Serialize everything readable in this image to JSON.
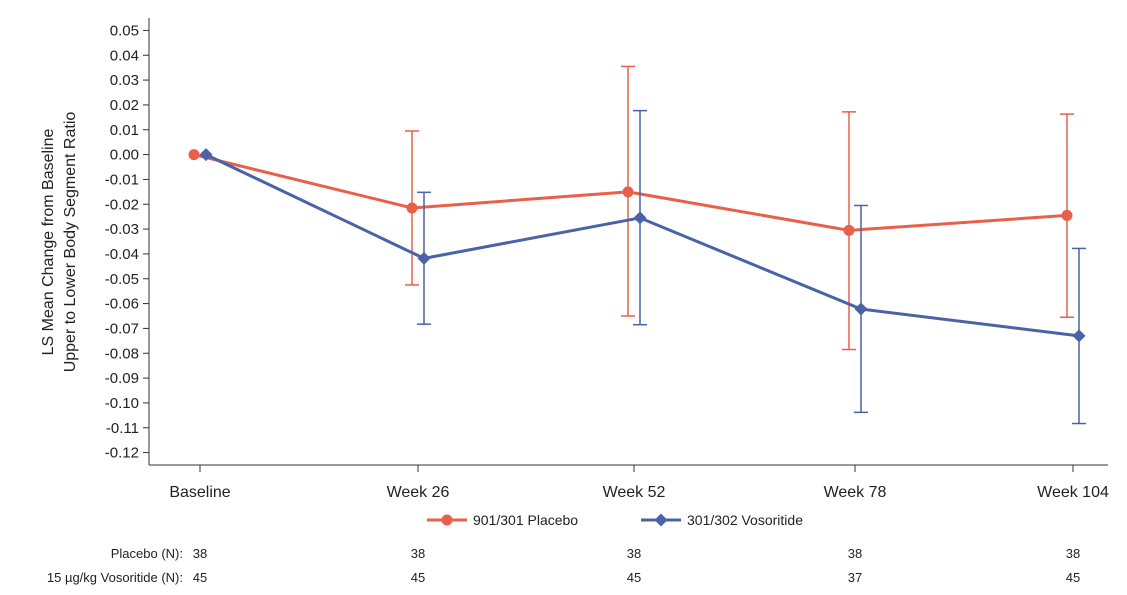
{
  "chart_data": {
    "type": "line",
    "categories": [
      "Baseline",
      "Week 26",
      "Week 52",
      "Week 78",
      "Week 104"
    ],
    "ylabel_lines": [
      "LS Mean Change from Baseline",
      "Upper to Lower Body Segment Ratio"
    ],
    "ylim": [
      -0.125,
      0.055
    ],
    "yticks": [
      "0.05",
      "0.04",
      "0.03",
      "0.02",
      "0.01",
      "0.00",
      "-0.01",
      "-0.02",
      "-0.03",
      "-0.04",
      "-0.05",
      "-0.06",
      "-0.07",
      "-0.08",
      "-0.09",
      "-0.10",
      "-0.11",
      "-0.12"
    ],
    "ytick_values": [
      0.05,
      0.04,
      0.03,
      0.02,
      0.01,
      0.0,
      -0.01,
      -0.02,
      -0.03,
      -0.04,
      -0.05,
      -0.06,
      -0.07,
      -0.08,
      -0.09,
      -0.1,
      -0.11,
      -0.12
    ],
    "series": [
      {
        "name": "901/301 Placebo",
        "color": "#e8604a",
        "marker": "circle",
        "values": [
          0.0,
          -0.0215,
          -0.015,
          -0.0305,
          -0.0245
        ],
        "ci_low": [
          null,
          -0.0525,
          -0.065,
          -0.0785,
          -0.0655
        ],
        "ci_high": [
          null,
          0.0095,
          0.0355,
          0.0172,
          0.0163
        ]
      },
      {
        "name": "301/302 Vosoritide",
        "color": "#4a62a6",
        "marker": "diamond",
        "values": [
          0.0,
          -0.0418,
          -0.0255,
          -0.0622,
          -0.073
        ],
        "ci_low": [
          null,
          -0.0683,
          -0.0685,
          -0.1038,
          -0.1083
        ],
        "ci_high": [
          null,
          -0.0152,
          0.0177,
          -0.0205,
          -0.0378
        ]
      }
    ],
    "legend_position": "bottom",
    "grid": false
  },
  "n_table": {
    "rows": [
      {
        "label": "Placebo (N):",
        "values": [
          "38",
          "38",
          "38",
          "38",
          "38"
        ]
      },
      {
        "label": "15 µg/kg Vosoritide (N):",
        "values": [
          "45",
          "45",
          "45",
          "37",
          "45"
        ]
      }
    ]
  }
}
